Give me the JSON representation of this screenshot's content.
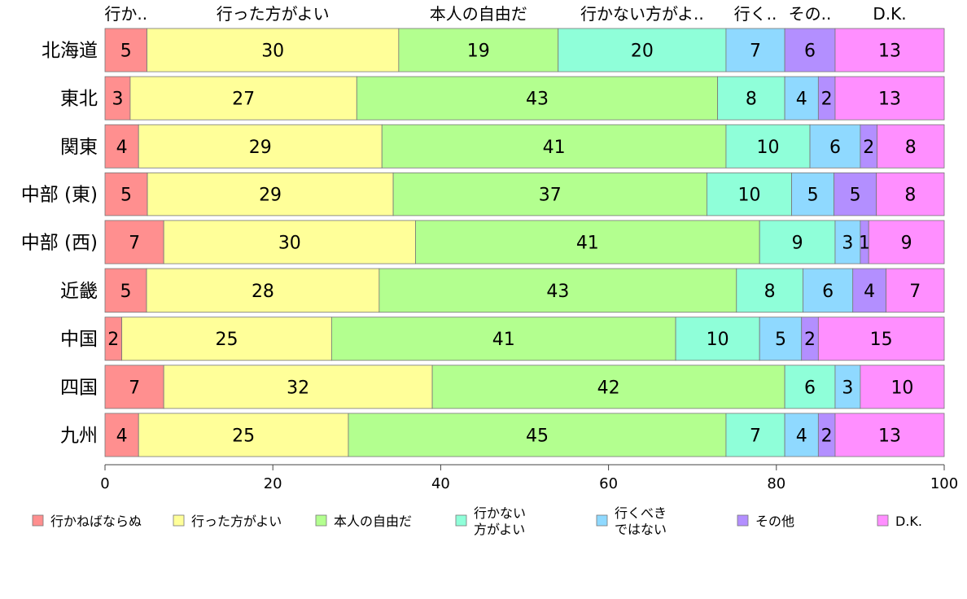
{
  "chart_data": {
    "type": "bar",
    "orientation": "horizontal",
    "stacked": true,
    "categories": [
      "北海道",
      "東北",
      "関東",
      "中部 (東)",
      "中部 (西)",
      "近畿",
      "中国",
      "四国",
      "九州"
    ],
    "series": [
      {
        "name": "行かねばならぬ",
        "color": "#ff8f8f",
        "header": "行か..",
        "values": [
          5,
          3,
          4,
          5,
          7,
          5,
          2,
          7,
          4
        ]
      },
      {
        "name": "行った方がよい",
        "color": "#ffff99",
        "header": "行った方がよい",
        "values": [
          30,
          27,
          29,
          29,
          30,
          28,
          25,
          32,
          25
        ]
      },
      {
        "name": "本人の自由だ",
        "color": "#b3ff8f",
        "header": "本人の自由だ",
        "values": [
          19,
          43,
          41,
          37,
          41,
          43,
          41,
          42,
          45
        ]
      },
      {
        "name": "行かない\n方がよい",
        "color": "#8fffd9",
        "header": "行かない方がよ..",
        "values": [
          20,
          8,
          10,
          10,
          9,
          8,
          10,
          6,
          7
        ]
      },
      {
        "name": "行くべき\nではない",
        "color": "#8fd9ff",
        "header": "行く..",
        "values": [
          7,
          4,
          6,
          5,
          3,
          6,
          5,
          3,
          4
        ]
      },
      {
        "name": "その他",
        "color": "#b38fff",
        "header": "その..",
        "values": [
          6,
          2,
          2,
          5,
          1,
          4,
          2,
          0,
          2
        ]
      },
      {
        "name": "D.K.",
        "color": "#ff8fff",
        "header": "D.K.",
        "values": [
          13,
          13,
          8,
          8,
          9,
          7,
          15,
          10,
          13
        ]
      }
    ],
    "xlim": [
      0,
      100
    ],
    "xticks": [
      0,
      20,
      40,
      60,
      80,
      100
    ],
    "legend_position": "bottom",
    "grid": false
  }
}
